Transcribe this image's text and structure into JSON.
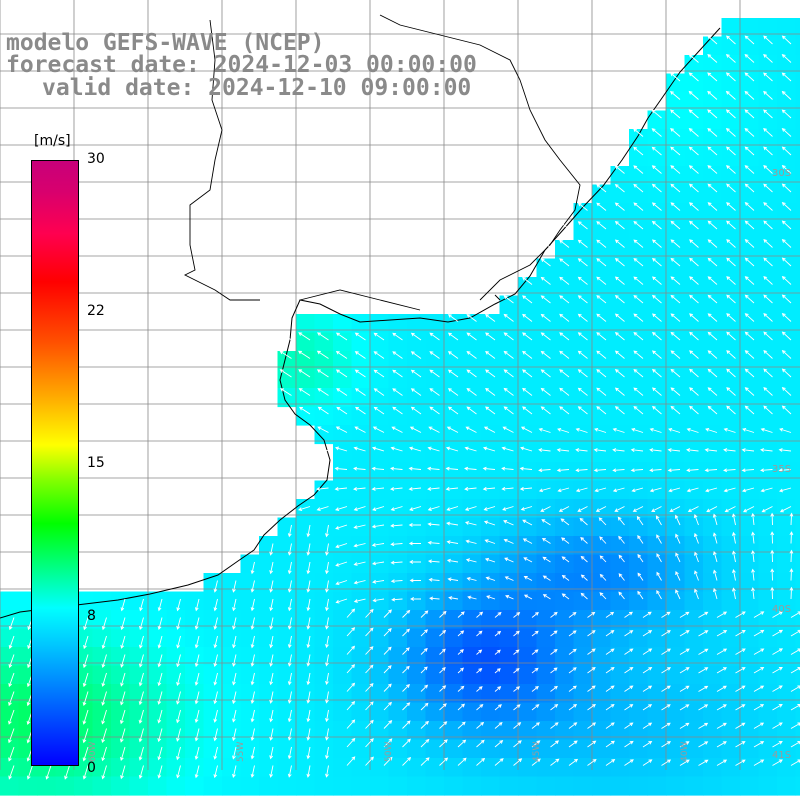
{
  "title": {
    "line1": "modelo GEFS-WAVE (NCEP)",
    "line2": "forecast date: 2024-12-03 00:00:00",
    "line3": "valid date: 2024-12-10 09:00:00"
  },
  "colorbar": {
    "unit": "[m/s]",
    "ticks": [
      "30",
      "22",
      "15",
      "8",
      "0"
    ],
    "min": 0,
    "max": 30
  },
  "axes": {
    "lon_labels": [
      "60W",
      "55W",
      "50W",
      "45W",
      "40W"
    ],
    "lat_labels": [
      "30S",
      "35S",
      "40S",
      "41S"
    ]
  },
  "colors": {
    "land": "#ffffff",
    "grid": "#888888",
    "coast": "#000000",
    "arrow": "#ffffff",
    "title": "#8a8a8a"
  }
}
